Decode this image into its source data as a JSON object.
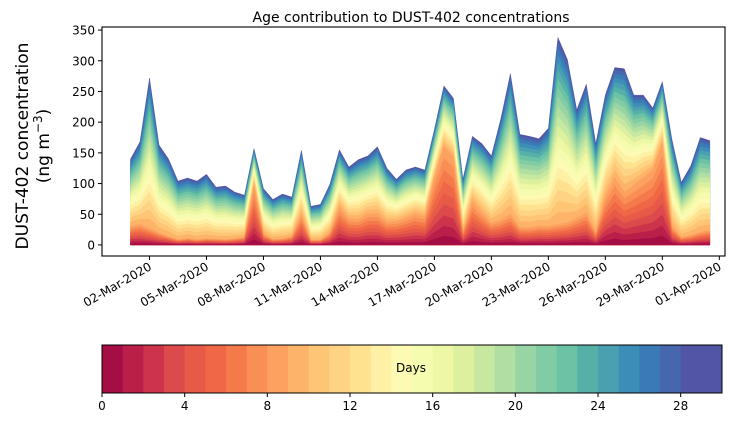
{
  "chart_data": {
    "type": "area",
    "subtype": "stacked-contour",
    "title": "Age contribution to DUST-402 concentrations",
    "xlabel": "",
    "ylabel_line1": "DUST-402 concentration",
    "ylabel_line2": "(ng m",
    "ylabel_sup": "−3",
    "ylabel_close": ")",
    "ylim": [
      -18,
      355
    ],
    "yticks": [
      0,
      50,
      100,
      150,
      200,
      250,
      300,
      350
    ],
    "xtick_labels": [
      "02-Mar-2020",
      "05-Mar-2020",
      "08-Mar-2020",
      "11-Mar-2020",
      "14-Mar-2020",
      "17-Mar-2020",
      "20-Mar-2020",
      "23-Mar-2020",
      "26-Mar-2020",
      "29-Mar-2020",
      "01-Apr-2020"
    ],
    "xtick_days": [
      1,
      4,
      7,
      10,
      13,
      16,
      19,
      22,
      25,
      28,
      31
    ],
    "x_unit": "days since 01-Mar-2020",
    "xlim": [
      -1.5,
      31.3
    ],
    "grid": false,
    "time_step_days": 0.5,
    "x_start_day": 0,
    "total": [
      140,
      168,
      272,
      163,
      140,
      104,
      109,
      104,
      115,
      94,
      96,
      86,
      81,
      157,
      92,
      74,
      83,
      78,
      154,
      63,
      66,
      99,
      155,
      127,
      139,
      145,
      160,
      125,
      107,
      122,
      127,
      122,
      188,
      259,
      239,
      107,
      177,
      165,
      145,
      206,
      279,
      180,
      177,
      173,
      190,
      338,
      302,
      220,
      262,
      165,
      244,
      289,
      287,
      244,
      244,
      223,
      266,
      173,
      102,
      129,
      175,
      170
    ],
    "young_fraction_peak": [
      0.22,
      0.2,
      0.1,
      0.12,
      0.1,
      0.08,
      0.1,
      0.08,
      0.09,
      0.1,
      0.09,
      0.12,
      0.16,
      0.62,
      0.2,
      0.12,
      0.12,
      0.18,
      0.32,
      0.12,
      0.12,
      0.2,
      0.4,
      0.34,
      0.3,
      0.35,
      0.32,
      0.3,
      0.36,
      0.36,
      0.4,
      0.38,
      0.58,
      0.62,
      0.6,
      0.2,
      0.4,
      0.32,
      0.25,
      0.2,
      0.18,
      0.16,
      0.16,
      0.18,
      0.16,
      0.1,
      0.12,
      0.2,
      0.2,
      0.12,
      0.32,
      0.38,
      0.3,
      0.4,
      0.45,
      0.55,
      0.62,
      0.18,
      0.12,
      0.12,
      0.12,
      0.14
    ],
    "colorbar": {
      "label": "Days",
      "ticks": [
        0,
        4,
        8,
        12,
        16,
        20,
        24,
        28
      ],
      "range": [
        0,
        30
      ],
      "orientation": "horizontal",
      "location": "bottom",
      "colors": [
        "#a50d45",
        "#ba1f49",
        "#cd344c",
        "#dc4a4c",
        "#e65a47",
        "#ef6746",
        "#f57a4b",
        "#f98f55",
        "#fca160",
        "#fdb368",
        "#fdc574",
        "#fed484",
        "#fee290",
        "#fef0a4",
        "#fcfab3",
        "#f5fbaf",
        "#eef8a4",
        "#dcf09f",
        "#c7e8a0",
        "#b1dfa2",
        "#99d5a4",
        "#81cba5",
        "#6bc2a5",
        "#56b0a8",
        "#4a9fb0",
        "#3c8eb9",
        "#3a7bb6",
        "#4667ae",
        "#5254a4"
      ]
    }
  }
}
